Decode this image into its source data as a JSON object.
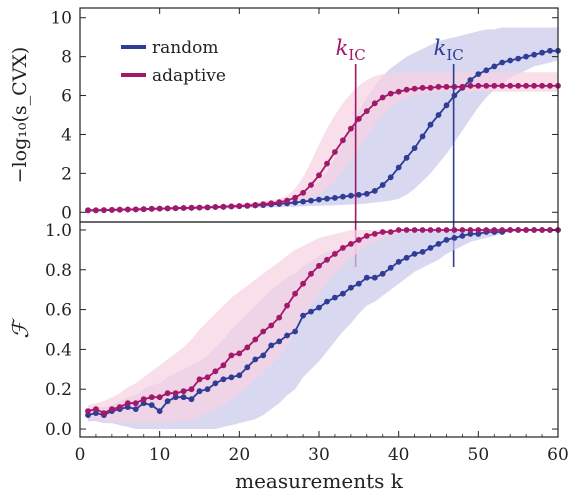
{
  "colors": {
    "random": "#2f3d96",
    "adaptive": "#a3186a",
    "random_band": "#c9c9ea",
    "adaptive_band": "#f6d3e2",
    "axis": "#222222"
  },
  "chart_data": [
    {
      "type": "line",
      "panel": "top",
      "ylabel": "−log₁₀(s_CVX)",
      "xlim": [
        0,
        60
      ],
      "ylim": [
        -0.5,
        10.5
      ],
      "yticks": [
        0,
        2,
        4,
        6,
        8,
        10
      ],
      "legend": {
        "placement": "top-left",
        "entries": [
          {
            "series": "random",
            "label": "random"
          },
          {
            "series": "adaptive",
            "label": "adaptive"
          }
        ]
      },
      "annotations": [
        {
          "label": "k",
          "sub": "IC",
          "series": "adaptive",
          "x": 34.6
        },
        {
          "label": "k",
          "sub": "IC",
          "series": "random",
          "x": 46.9
        }
      ],
      "series": [
        {
          "name": "random",
          "x": [
            1,
            2,
            3,
            4,
            5,
            6,
            7,
            8,
            9,
            10,
            11,
            12,
            13,
            14,
            15,
            16,
            17,
            18,
            19,
            20,
            21,
            22,
            23,
            24,
            25,
            26,
            27,
            28,
            29,
            30,
            31,
            32,
            33,
            34,
            35,
            36,
            37,
            38,
            39,
            40,
            41,
            42,
            43,
            44,
            45,
            46,
            47,
            48,
            49,
            50,
            51,
            52,
            53,
            54,
            55,
            56,
            57,
            58,
            59,
            60
          ],
          "values": [
            0.1,
            0.1,
            0.11,
            0.12,
            0.13,
            0.14,
            0.15,
            0.16,
            0.18,
            0.19,
            0.2,
            0.21,
            0.22,
            0.23,
            0.24,
            0.25,
            0.27,
            0.28,
            0.3,
            0.31,
            0.33,
            0.35,
            0.37,
            0.4,
            0.43,
            0.46,
            0.5,
            0.55,
            0.6,
            0.65,
            0.7,
            0.74,
            0.8,
            0.85,
            0.9,
            0.95,
            1.1,
            1.4,
            1.8,
            2.3,
            2.8,
            3.3,
            3.9,
            4.5,
            5.0,
            5.5,
            6.0,
            6.4,
            6.8,
            7.1,
            7.3,
            7.5,
            7.7,
            7.8,
            7.9,
            8.0,
            8.1,
            8.2,
            8.3,
            8.3
          ],
          "band_upper": [
            0.15,
            0.16,
            0.17,
            0.18,
            0.19,
            0.2,
            0.21,
            0.22,
            0.23,
            0.24,
            0.25,
            0.27,
            0.28,
            0.3,
            0.31,
            0.33,
            0.35,
            0.37,
            0.39,
            0.41,
            0.43,
            0.46,
            0.49,
            0.52,
            0.56,
            0.61,
            0.7,
            0.9,
            1.2,
            1.6,
            2.1,
            2.8,
            3.6,
            4.4,
            5.2,
            5.9,
            6.5,
            7.0,
            7.4,
            7.7,
            8.0,
            8.2,
            8.4,
            8.6,
            8.8,
            8.9,
            9.0,
            9.1,
            9.2,
            9.3,
            9.4,
            9.4,
            9.5,
            9.5,
            9.5,
            9.5,
            9.5,
            9.5,
            9.5,
            9.5
          ],
          "band_lower": [
            0.05,
            0.05,
            0.05,
            0.06,
            0.06,
            0.07,
            0.08,
            0.09,
            0.1,
            0.11,
            0.12,
            0.13,
            0.14,
            0.15,
            0.16,
            0.17,
            0.18,
            0.19,
            0.2,
            0.21,
            0.22,
            0.23,
            0.24,
            0.25,
            0.26,
            0.27,
            0.28,
            0.3,
            0.32,
            0.34,
            0.35,
            0.36,
            0.38,
            0.4,
            0.42,
            0.45,
            0.5,
            0.55,
            0.6,
            0.7,
            0.9,
            1.2,
            1.6,
            2.0,
            2.5,
            3.0,
            3.6,
            4.2,
            4.8,
            5.4,
            5.9,
            6.3,
            6.6,
            6.9,
            7.1,
            7.3,
            7.5,
            7.6,
            7.7,
            7.8
          ]
        },
        {
          "name": "adaptive",
          "x": [
            1,
            2,
            3,
            4,
            5,
            6,
            7,
            8,
            9,
            10,
            11,
            12,
            13,
            14,
            15,
            16,
            17,
            18,
            19,
            20,
            21,
            22,
            23,
            24,
            25,
            26,
            27,
            28,
            29,
            30,
            31,
            32,
            33,
            34,
            35,
            36,
            37,
            38,
            39,
            40,
            41,
            42,
            43,
            44,
            45,
            46,
            47,
            48,
            49,
            50,
            51,
            52,
            53,
            54,
            55,
            56,
            57,
            58,
            59,
            60
          ],
          "values": [
            0.1,
            0.1,
            0.11,
            0.12,
            0.13,
            0.14,
            0.15,
            0.16,
            0.18,
            0.19,
            0.2,
            0.21,
            0.22,
            0.23,
            0.24,
            0.25,
            0.27,
            0.28,
            0.3,
            0.32,
            0.35,
            0.38,
            0.42,
            0.46,
            0.52,
            0.6,
            0.75,
            1.0,
            1.4,
            1.9,
            2.5,
            3.1,
            3.7,
            4.3,
            4.8,
            5.2,
            5.6,
            5.9,
            6.1,
            6.2,
            6.3,
            6.35,
            6.4,
            6.4,
            6.45,
            6.45,
            6.45,
            6.45,
            6.5,
            6.5,
            6.5,
            6.5,
            6.5,
            6.5,
            6.5,
            6.5,
            6.5,
            6.5,
            6.5,
            6.5
          ],
          "band_upper": [
            0.15,
            0.16,
            0.17,
            0.18,
            0.19,
            0.2,
            0.21,
            0.22,
            0.23,
            0.24,
            0.25,
            0.27,
            0.28,
            0.3,
            0.32,
            0.34,
            0.36,
            0.38,
            0.4,
            0.43,
            0.46,
            0.5,
            0.55,
            0.62,
            0.7,
            0.85,
            1.2,
            1.8,
            2.6,
            3.5,
            4.3,
            5.0,
            5.6,
            6.1,
            6.5,
            6.8,
            7.0,
            7.1,
            7.15,
            7.2,
            7.2,
            7.2,
            7.2,
            7.2,
            7.2,
            7.2,
            7.2,
            7.2,
            7.2,
            7.2,
            7.2,
            7.2,
            7.2,
            7.2,
            7.2,
            7.2,
            7.2,
            7.2,
            7.2,
            7.2
          ],
          "band_lower": [
            0.05,
            0.05,
            0.05,
            0.06,
            0.06,
            0.07,
            0.08,
            0.09,
            0.1,
            0.11,
            0.12,
            0.13,
            0.14,
            0.15,
            0.16,
            0.17,
            0.18,
            0.19,
            0.2,
            0.21,
            0.23,
            0.25,
            0.28,
            0.31,
            0.35,
            0.4,
            0.45,
            0.55,
            0.7,
            0.9,
            1.2,
            1.6,
            2.1,
            2.7,
            3.3,
            3.9,
            4.5,
            5.0,
            5.4,
            5.7,
            5.9,
            6.0,
            6.1,
            6.1,
            6.2,
            6.2,
            6.2,
            6.2,
            6.2,
            6.2,
            6.2,
            6.2,
            6.2,
            6.2,
            6.2,
            6.2,
            6.2,
            6.2,
            6.2,
            6.2
          ]
        }
      ]
    },
    {
      "type": "line",
      "panel": "bottom",
      "ylabel": "ℱ",
      "xlabel": "measurements k",
      "xlim": [
        0,
        60
      ],
      "ylim": [
        -0.04,
        1.04
      ],
      "xticks": [
        0,
        10,
        20,
        30,
        40,
        50,
        60
      ],
      "yticks": [
        0.0,
        0.2,
        0.4,
        0.6,
        0.8,
        1.0
      ],
      "series": [
        {
          "name": "random",
          "x": [
            1,
            2,
            3,
            4,
            5,
            6,
            7,
            8,
            9,
            10,
            11,
            12,
            13,
            14,
            15,
            16,
            17,
            18,
            19,
            20,
            21,
            22,
            23,
            24,
            25,
            26,
            27,
            28,
            29,
            30,
            31,
            32,
            33,
            34,
            35,
            36,
            37,
            38,
            39,
            40,
            41,
            42,
            43,
            44,
            45,
            46,
            47,
            48,
            49,
            50,
            51,
            52,
            53,
            54,
            55,
            56,
            57,
            58,
            59,
            60
          ],
          "values": [
            0.07,
            0.08,
            0.07,
            0.09,
            0.1,
            0.11,
            0.1,
            0.13,
            0.12,
            0.09,
            0.14,
            0.16,
            0.16,
            0.15,
            0.19,
            0.2,
            0.23,
            0.25,
            0.26,
            0.27,
            0.31,
            0.35,
            0.37,
            0.42,
            0.44,
            0.47,
            0.49,
            0.57,
            0.59,
            0.61,
            0.64,
            0.66,
            0.68,
            0.71,
            0.73,
            0.76,
            0.76,
            0.78,
            0.81,
            0.84,
            0.86,
            0.88,
            0.89,
            0.91,
            0.93,
            0.95,
            0.96,
            0.97,
            0.98,
            0.98,
            0.99,
            0.99,
            0.99,
            1.0,
            1.0,
            1.0,
            1.0,
            1.0,
            1.0,
            1.0
          ],
          "band_upper": [
            0.1,
            0.11,
            0.11,
            0.12,
            0.14,
            0.16,
            0.17,
            0.2,
            0.22,
            0.23,
            0.26,
            0.28,
            0.3,
            0.32,
            0.34,
            0.37,
            0.41,
            0.45,
            0.5,
            0.54,
            0.58,
            0.62,
            0.66,
            0.7,
            0.73,
            0.76,
            0.78,
            0.82,
            0.84,
            0.87,
            0.89,
            0.9,
            0.92,
            0.94,
            0.95,
            0.96,
            0.97,
            0.98,
            0.99,
            0.99,
            1.0,
            1.0,
            1.0,
            1.0,
            1.0,
            1.0,
            1.0,
            1.0,
            1.0,
            1.0,
            1.0,
            1.0,
            1.0,
            1.0,
            1.0,
            1.0,
            1.0,
            1.0,
            1.0,
            1.0
          ],
          "band_lower": [
            0.04,
            0.04,
            0.03,
            0.03,
            0.02,
            0.01,
            0.0,
            0.0,
            0.0,
            0.0,
            0.0,
            0.0,
            0.0,
            0.0,
            0.0,
            0.0,
            0.0,
            0.01,
            0.02,
            0.03,
            0.04,
            0.05,
            0.07,
            0.1,
            0.13,
            0.17,
            0.2,
            0.26,
            0.3,
            0.34,
            0.39,
            0.44,
            0.49,
            0.53,
            0.58,
            0.62,
            0.64,
            0.67,
            0.7,
            0.73,
            0.76,
            0.79,
            0.81,
            0.83,
            0.85,
            0.88,
            0.9,
            0.92,
            0.94,
            0.95,
            0.96,
            0.97,
            0.98,
            0.99,
            0.99,
            1.0,
            1.0,
            1.0,
            1.0,
            1.0
          ]
        },
        {
          "name": "adaptive",
          "x": [
            1,
            2,
            3,
            4,
            5,
            6,
            7,
            8,
            9,
            10,
            11,
            12,
            13,
            14,
            15,
            16,
            17,
            18,
            19,
            20,
            21,
            22,
            23,
            24,
            25,
            26,
            27,
            28,
            29,
            30,
            31,
            32,
            33,
            34,
            35,
            36,
            37,
            38,
            39,
            40,
            41,
            42,
            43,
            44,
            45,
            46,
            47,
            48,
            49,
            50,
            51,
            52,
            53,
            54,
            55,
            56,
            57,
            58,
            59,
            60
          ],
          "values": [
            0.09,
            0.1,
            0.08,
            0.1,
            0.11,
            0.13,
            0.13,
            0.15,
            0.16,
            0.16,
            0.18,
            0.18,
            0.19,
            0.2,
            0.25,
            0.26,
            0.29,
            0.32,
            0.37,
            0.38,
            0.41,
            0.45,
            0.49,
            0.52,
            0.56,
            0.62,
            0.68,
            0.73,
            0.78,
            0.82,
            0.85,
            0.88,
            0.91,
            0.93,
            0.95,
            0.97,
            0.98,
            0.99,
            0.99,
            1.0,
            1.0,
            1.0,
            1.0,
            1.0,
            1.0,
            1.0,
            1.0,
            1.0,
            1.0,
            1.0,
            1.0,
            1.0,
            1.0,
            1.0,
            1.0,
            1.0,
            1.0,
            1.0,
            1.0,
            1.0
          ],
          "band_upper": [
            0.12,
            0.13,
            0.14,
            0.16,
            0.18,
            0.21,
            0.23,
            0.26,
            0.29,
            0.32,
            0.35,
            0.38,
            0.41,
            0.45,
            0.5,
            0.54,
            0.58,
            0.62,
            0.66,
            0.69,
            0.72,
            0.75,
            0.78,
            0.81,
            0.84,
            0.87,
            0.9,
            0.92,
            0.94,
            0.96,
            0.97,
            0.98,
            0.99,
            1.0,
            1.0,
            1.0,
            1.0,
            1.0,
            1.0,
            1.0,
            1.0,
            1.0,
            1.0,
            1.0,
            1.0,
            1.0,
            1.0,
            1.0,
            1.0,
            1.0,
            1.0,
            1.0,
            1.0,
            1.0,
            1.0,
            1.0,
            1.0,
            1.0,
            1.0,
            1.0
          ],
          "band_lower": [
            0.05,
            0.05,
            0.04,
            0.04,
            0.03,
            0.03,
            0.03,
            0.03,
            0.03,
            0.03,
            0.03,
            0.04,
            0.04,
            0.05,
            0.06,
            0.08,
            0.1,
            0.12,
            0.15,
            0.18,
            0.21,
            0.25,
            0.28,
            0.32,
            0.36,
            0.42,
            0.49,
            0.56,
            0.62,
            0.68,
            0.73,
            0.78,
            0.82,
            0.86,
            0.89,
            0.92,
            0.94,
            0.96,
            0.97,
            0.98,
            0.99,
            0.99,
            1.0,
            1.0,
            1.0,
            1.0,
            1.0,
            1.0,
            1.0,
            1.0,
            1.0,
            1.0,
            1.0,
            1.0,
            1.0,
            1.0,
            1.0,
            1.0,
            1.0,
            1.0
          ]
        }
      ]
    }
  ]
}
